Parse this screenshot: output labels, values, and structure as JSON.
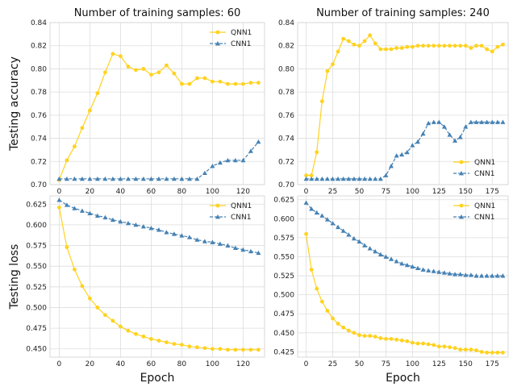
{
  "chart_data": [
    {
      "type": "line",
      "title": "Number of training samples: 60",
      "xlabel": "",
      "ylabel": "Testing accuracy",
      "xlim": [
        -6,
        134
      ],
      "ylim": [
        0.7,
        0.84
      ],
      "xticks": [
        0,
        20,
        40,
        60,
        80,
        100,
        120
      ],
      "yticks": [
        0.7,
        0.72,
        0.74,
        0.76,
        0.78,
        0.8,
        0.82,
        0.84
      ],
      "ytick_decimals": 2,
      "grid": true,
      "legend": "top-right",
      "series": [
        {
          "name": "QNN1",
          "color": "#FFD21F",
          "marker": "circle",
          "dashed": false,
          "x": [
            0,
            5,
            10,
            15,
            20,
            25,
            30,
            35,
            40,
            45,
            50,
            55,
            60,
            65,
            70,
            75,
            80,
            85,
            90,
            95,
            100,
            105,
            110,
            115,
            120,
            125,
            130
          ],
          "y": [
            0.704,
            0.721,
            0.733,
            0.749,
            0.764,
            0.779,
            0.797,
            0.813,
            0.811,
            0.802,
            0.799,
            0.8,
            0.795,
            0.797,
            0.803,
            0.796,
            0.787,
            0.787,
            0.792,
            0.792,
            0.789,
            0.789,
            0.787,
            0.787,
            0.787,
            0.788,
            0.788
          ]
        },
        {
          "name": "CNN1",
          "color": "#4682B4",
          "marker": "triangle",
          "dashed": true,
          "x": [
            0,
            5,
            10,
            15,
            20,
            25,
            30,
            35,
            40,
            45,
            50,
            55,
            60,
            65,
            70,
            75,
            80,
            85,
            90,
            95,
            100,
            105,
            110,
            115,
            120,
            125,
            130
          ],
          "y": [
            0.705,
            0.705,
            0.705,
            0.705,
            0.705,
            0.705,
            0.705,
            0.705,
            0.705,
            0.705,
            0.705,
            0.705,
            0.705,
            0.705,
            0.705,
            0.705,
            0.705,
            0.705,
            0.705,
            0.71,
            0.716,
            0.719,
            0.721,
            0.721,
            0.721,
            0.729,
            0.737
          ]
        }
      ]
    },
    {
      "type": "line",
      "title": "Number of training samples: 240",
      "xlabel": "",
      "ylabel": "",
      "xlim": [
        -8,
        190
      ],
      "ylim": [
        0.7,
        0.84
      ],
      "xticks": [
        0,
        25,
        50,
        75,
        100,
        125,
        150,
        175
      ],
      "yticks": [
        0.7,
        0.72,
        0.74,
        0.76,
        0.78,
        0.8,
        0.82,
        0.84
      ],
      "ytick_decimals": 2,
      "grid": true,
      "legend": "bottom-right",
      "series": [
        {
          "name": "QNN1",
          "color": "#FFD21F",
          "marker": "circle",
          "dashed": false,
          "x": [
            0,
            5,
            10,
            15,
            20,
            25,
            30,
            35,
            40,
            45,
            50,
            55,
            60,
            65,
            70,
            75,
            80,
            85,
            90,
            95,
            100,
            105,
            110,
            115,
            120,
            125,
            130,
            135,
            140,
            145,
            150,
            155,
            160,
            165,
            170,
            175,
            180,
            185
          ],
          "y": [
            0.708,
            0.708,
            0.728,
            0.772,
            0.798,
            0.804,
            0.815,
            0.826,
            0.824,
            0.821,
            0.82,
            0.824,
            0.829,
            0.822,
            0.817,
            0.817,
            0.817,
            0.818,
            0.818,
            0.819,
            0.819,
            0.82,
            0.82,
            0.82,
            0.82,
            0.82,
            0.82,
            0.82,
            0.82,
            0.82,
            0.82,
            0.818,
            0.82,
            0.82,
            0.817,
            0.815,
            0.819,
            0.821
          ]
        },
        {
          "name": "CNN1",
          "color": "#4682B4",
          "marker": "triangle",
          "dashed": true,
          "x": [
            0,
            5,
            10,
            15,
            20,
            25,
            30,
            35,
            40,
            45,
            50,
            55,
            60,
            65,
            70,
            75,
            80,
            85,
            90,
            95,
            100,
            105,
            110,
            115,
            120,
            125,
            130,
            135,
            140,
            145,
            150,
            155,
            160,
            165,
            170,
            175,
            180,
            185
          ],
          "y": [
            0.705,
            0.705,
            0.705,
            0.705,
            0.705,
            0.705,
            0.705,
            0.705,
            0.705,
            0.705,
            0.705,
            0.705,
            0.705,
            0.705,
            0.705,
            0.708,
            0.716,
            0.725,
            0.726,
            0.728,
            0.734,
            0.737,
            0.744,
            0.753,
            0.754,
            0.754,
            0.75,
            0.743,
            0.738,
            0.741,
            0.75,
            0.754,
            0.754,
            0.754,
            0.754,
            0.754,
            0.754,
            0.754
          ]
        }
      ]
    },
    {
      "type": "line",
      "title": "",
      "xlabel": "Epoch",
      "ylabel": "Testing loss",
      "xlim": [
        -6,
        134
      ],
      "ylim": [
        0.44,
        0.635
      ],
      "xticks": [
        0,
        20,
        40,
        60,
        80,
        100,
        120
      ],
      "yticks": [
        0.45,
        0.475,
        0.5,
        0.525,
        0.55,
        0.575,
        0.6,
        0.625
      ],
      "ytick_decimals": 3,
      "grid": true,
      "legend": "top-right",
      "series": [
        {
          "name": "QNN1",
          "color": "#FFD21F",
          "marker": "circle",
          "dashed": false,
          "x": [
            0,
            5,
            10,
            15,
            20,
            25,
            30,
            35,
            40,
            45,
            50,
            55,
            60,
            65,
            70,
            75,
            80,
            85,
            90,
            95,
            100,
            105,
            110,
            115,
            120,
            125,
            130
          ],
          "y": [
            0.621,
            0.573,
            0.546,
            0.526,
            0.511,
            0.5,
            0.491,
            0.484,
            0.477,
            0.472,
            0.468,
            0.465,
            0.462,
            0.46,
            0.458,
            0.456,
            0.455,
            0.453,
            0.452,
            0.451,
            0.45,
            0.45,
            0.449,
            0.449,
            0.449,
            0.449,
            0.449
          ]
        },
        {
          "name": "CNN1",
          "color": "#4682B4",
          "marker": "triangle",
          "dashed": true,
          "x": [
            0,
            5,
            10,
            15,
            20,
            25,
            30,
            35,
            40,
            45,
            50,
            55,
            60,
            65,
            70,
            75,
            80,
            85,
            90,
            95,
            100,
            105,
            110,
            115,
            120,
            125,
            130
          ],
          "y": [
            0.63,
            0.624,
            0.62,
            0.617,
            0.614,
            0.611,
            0.609,
            0.606,
            0.604,
            0.602,
            0.6,
            0.598,
            0.596,
            0.594,
            0.591,
            0.589,
            0.587,
            0.585,
            0.582,
            0.58,
            0.579,
            0.577,
            0.575,
            0.572,
            0.57,
            0.568,
            0.566
          ]
        }
      ]
    },
    {
      "type": "line",
      "title": "",
      "xlabel": "Epoch",
      "ylabel": "",
      "xlim": [
        -8,
        190
      ],
      "ylim": [
        0.418,
        0.63
      ],
      "xticks": [
        0,
        25,
        50,
        75,
        100,
        125,
        150,
        175
      ],
      "yticks": [
        0.425,
        0.45,
        0.475,
        0.5,
        0.525,
        0.55,
        0.575,
        0.6,
        0.625
      ],
      "ytick_decimals": 3,
      "grid": true,
      "legend": "top-right",
      "series": [
        {
          "name": "QNN1",
          "color": "#FFD21F",
          "marker": "circle",
          "dashed": false,
          "x": [
            0,
            5,
            10,
            15,
            20,
            25,
            30,
            35,
            40,
            45,
            50,
            55,
            60,
            65,
            70,
            75,
            80,
            85,
            90,
            95,
            100,
            105,
            110,
            115,
            120,
            125,
            130,
            135,
            140,
            145,
            150,
            155,
            160,
            165,
            170,
            175,
            180,
            185
          ],
          "y": [
            0.58,
            0.533,
            0.508,
            0.491,
            0.479,
            0.469,
            0.462,
            0.457,
            0.453,
            0.45,
            0.447,
            0.446,
            0.446,
            0.445,
            0.443,
            0.442,
            0.442,
            0.441,
            0.44,
            0.439,
            0.437,
            0.436,
            0.436,
            0.435,
            0.434,
            0.432,
            0.432,
            0.431,
            0.43,
            0.428,
            0.428,
            0.428,
            0.427,
            0.425,
            0.424,
            0.424,
            0.424,
            0.424
          ]
        },
        {
          "name": "CNN1",
          "color": "#4682B4",
          "marker": "triangle",
          "dashed": true,
          "x": [
            0,
            5,
            10,
            15,
            20,
            25,
            30,
            35,
            40,
            45,
            50,
            55,
            60,
            65,
            70,
            75,
            80,
            85,
            90,
            95,
            100,
            105,
            110,
            115,
            120,
            125,
            130,
            135,
            140,
            145,
            150,
            155,
            160,
            165,
            170,
            175,
            180,
            185
          ],
          "y": [
            0.621,
            0.613,
            0.608,
            0.604,
            0.599,
            0.594,
            0.589,
            0.584,
            0.579,
            0.574,
            0.57,
            0.565,
            0.561,
            0.557,
            0.553,
            0.55,
            0.547,
            0.544,
            0.541,
            0.539,
            0.537,
            0.535,
            0.533,
            0.532,
            0.531,
            0.53,
            0.529,
            0.528,
            0.527,
            0.527,
            0.526,
            0.526,
            0.525,
            0.525,
            0.525,
            0.525,
            0.525,
            0.525
          ]
        }
      ]
    }
  ]
}
